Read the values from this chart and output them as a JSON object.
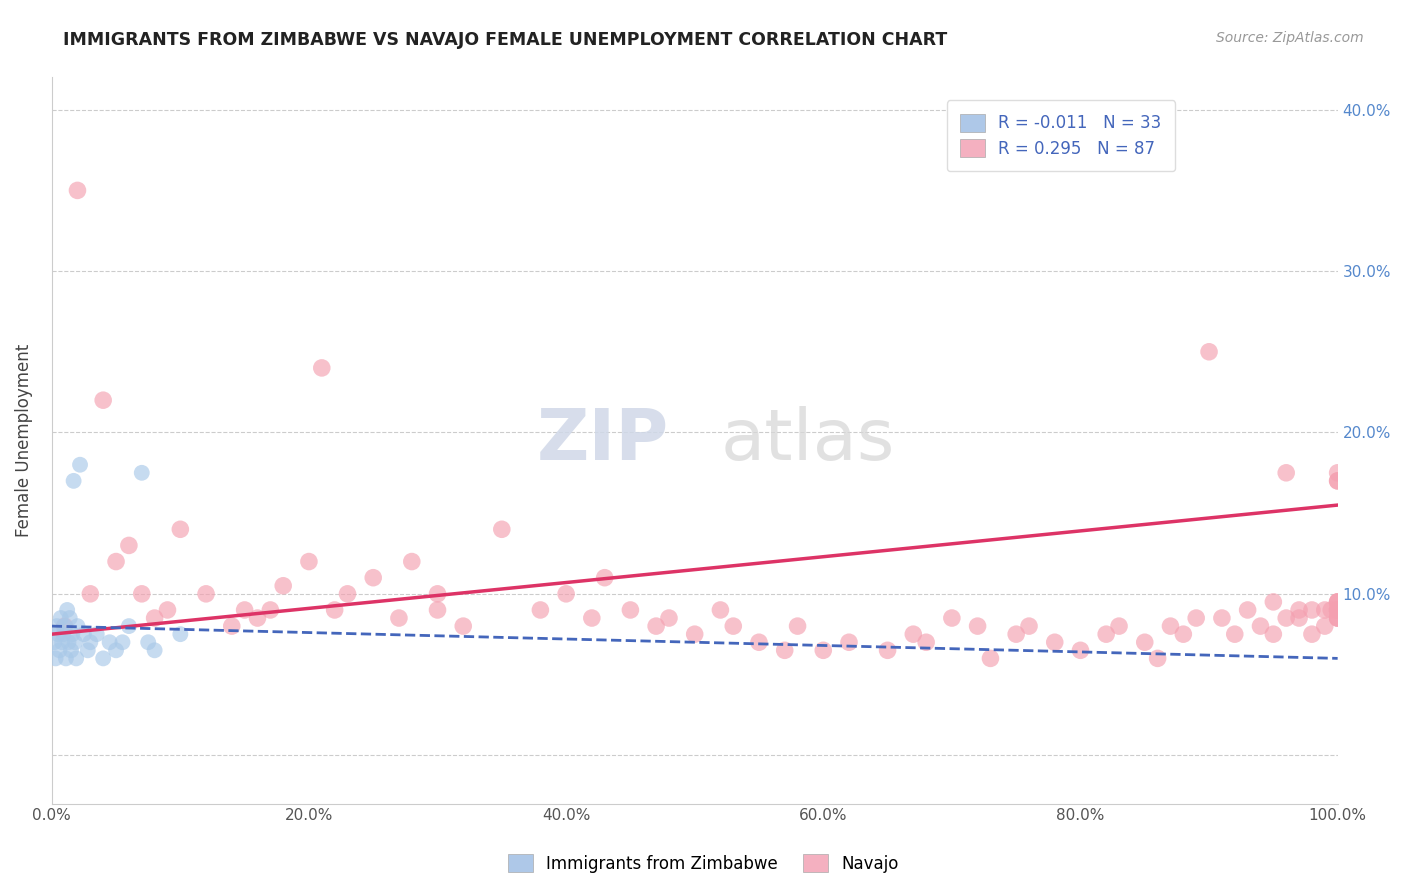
{
  "title": "IMMIGRANTS FROM ZIMBABWE VS NAVAJO FEMALE UNEMPLOYMENT CORRELATION CHART",
  "source": "Source: ZipAtlas.com",
  "ylabel": "Female Unemployment",
  "legend_labels": [
    "Immigrants from Zimbabwe",
    "Navajo"
  ],
  "blue_R": -0.011,
  "blue_N": 33,
  "pink_R": 0.295,
  "pink_N": 87,
  "blue_color": "#a8c8e8",
  "pink_color": "#f4a0b0",
  "blue_line_color": "#4466bb",
  "pink_line_color": "#dd3366",
  "watermark_zip": "ZIP",
  "watermark_atlas": "atlas",
  "xlim": [
    0,
    100
  ],
  "ylim": [
    -3,
    42
  ],
  "xticks": [
    0,
    20,
    40,
    60,
    80,
    100
  ],
  "yticks": [
    0,
    10,
    20,
    30,
    40
  ],
  "blue_x": [
    0.2,
    0.3,
    0.4,
    0.5,
    0.6,
    0.7,
    0.8,
    0.9,
    1.0,
    1.1,
    1.2,
    1.3,
    1.4,
    1.5,
    1.6,
    1.7,
    1.8,
    1.9,
    2.0,
    2.2,
    2.5,
    2.8,
    3.0,
    3.5,
    4.0,
    4.5,
    5.0,
    5.5,
    6.0,
    7.0,
    7.5,
    8.0,
    10.0
  ],
  "blue_y": [
    7.0,
    6.0,
    8.0,
    7.5,
    6.5,
    8.5,
    7.0,
    7.5,
    8.0,
    6.0,
    9.0,
    7.0,
    8.5,
    6.5,
    7.5,
    17.0,
    7.0,
    6.0,
    8.0,
    18.0,
    7.5,
    6.5,
    7.0,
    7.5,
    6.0,
    7.0,
    6.5,
    7.0,
    8.0,
    17.5,
    7.0,
    6.5,
    7.5
  ],
  "pink_x": [
    1.0,
    2.0,
    3.0,
    4.0,
    5.0,
    6.0,
    7.0,
    8.0,
    9.0,
    10.0,
    12.0,
    14.0,
    15.0,
    16.0,
    17.0,
    18.0,
    20.0,
    21.0,
    22.0,
    23.0,
    25.0,
    27.0,
    28.0,
    30.0,
    30.0,
    32.0,
    35.0,
    38.0,
    40.0,
    42.0,
    43.0,
    45.0,
    47.0,
    48.0,
    50.0,
    52.0,
    53.0,
    55.0,
    57.0,
    58.0,
    60.0,
    62.0,
    65.0,
    67.0,
    68.0,
    70.0,
    72.0,
    73.0,
    75.0,
    76.0,
    78.0,
    80.0,
    82.0,
    83.0,
    85.0,
    86.0,
    87.0,
    88.0,
    89.0,
    90.0,
    91.0,
    92.0,
    93.0,
    94.0,
    95.0,
    95.0,
    96.0,
    96.0,
    97.0,
    97.0,
    98.0,
    98.0,
    99.0,
    99.0,
    99.5,
    100.0,
    100.0,
    100.0,
    100.0,
    100.0,
    100.0,
    100.0,
    100.0,
    100.0,
    100.0,
    100.0,
    100.0
  ],
  "pink_y": [
    8.0,
    35.0,
    10.0,
    22.0,
    12.0,
    13.0,
    10.0,
    8.5,
    9.0,
    14.0,
    10.0,
    8.0,
    9.0,
    8.5,
    9.0,
    10.5,
    12.0,
    24.0,
    9.0,
    10.0,
    11.0,
    8.5,
    12.0,
    9.0,
    10.0,
    8.0,
    14.0,
    9.0,
    10.0,
    8.5,
    11.0,
    9.0,
    8.0,
    8.5,
    7.5,
    9.0,
    8.0,
    7.0,
    6.5,
    8.0,
    6.5,
    7.0,
    6.5,
    7.5,
    7.0,
    8.5,
    8.0,
    6.0,
    7.5,
    8.0,
    7.0,
    6.5,
    7.5,
    8.0,
    7.0,
    6.0,
    8.0,
    7.5,
    8.5,
    25.0,
    8.5,
    7.5,
    9.0,
    8.0,
    9.5,
    7.5,
    8.5,
    17.5,
    9.0,
    8.5,
    9.0,
    7.5,
    9.0,
    8.0,
    9.0,
    8.5,
    9.5,
    17.0,
    8.5,
    9.0,
    9.5,
    8.5,
    17.0,
    9.0,
    9.5,
    17.5,
    9.0
  ]
}
